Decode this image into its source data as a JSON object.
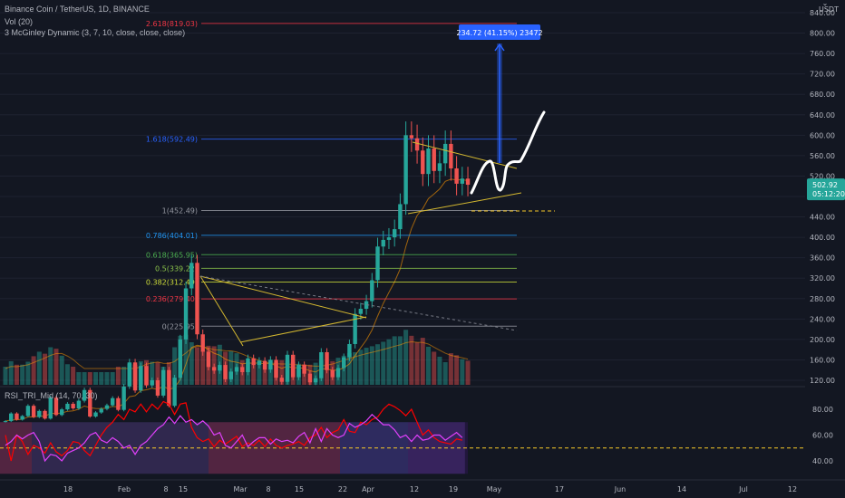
{
  "header": {
    "symbol_line": "Binance Coin / TetherUS, 1D, BINANCE",
    "indicator_1": "Vol (20)",
    "indicator_2": "3 McGinley Dynamic (3, 7, 10, close, close, close)",
    "rsi_label": "RSI_TRI_Mid (14, 70, 30)"
  },
  "price_axis": {
    "currency": "USDT",
    "ticks": [
      "840.00",
      "800.00",
      "760.00",
      "720.00",
      "680.00",
      "640.00",
      "600.00",
      "560.00",
      "520.00",
      "480.00",
      "440.00",
      "400.00",
      "360.00",
      "320.00",
      "280.00",
      "240.00",
      "200.00",
      "160.00",
      "120.00"
    ],
    "current_price": "502.92",
    "countdown": "05:12:20",
    "price_color": "#26a69a"
  },
  "rsi_axis": {
    "ticks": [
      "80.00",
      "60.00",
      "40.00"
    ]
  },
  "time_axis": {
    "labels": [
      "18",
      "Feb",
      "8",
      "15",
      "Mar",
      "8",
      "15",
      "22",
      "Apr",
      "12",
      "19",
      "May",
      "17",
      "Jun",
      "14",
      "Jul",
      "12"
    ]
  },
  "fib_levels": [
    {
      "label": "2.618(819.03)",
      "price": 819.03,
      "color": "#f23645"
    },
    {
      "label": "1.618(592.49)",
      "price": 592.49,
      "color": "#2962ff"
    },
    {
      "label": "1(452.49)",
      "price": 452.49,
      "color": "#9598a1"
    },
    {
      "label": "0.786(404.01)",
      "price": 404.01,
      "color": "#2196f3"
    },
    {
      "label": "0.618(365.95)",
      "price": 365.95,
      "color": "#4caf50"
    },
    {
      "label": "0.5(339.22)",
      "price": 339.22,
      "color": "#8bc34a"
    },
    {
      "label": "0.382(312.49)",
      "price": 312.49,
      "color": "#cddc39"
    },
    {
      "label": "0.236(279.40)",
      "price": 279.4,
      "color": "#f23645"
    },
    {
      "label": "0(225.95)",
      "price": 225.95,
      "color": "#9598a1"
    }
  ],
  "measure_tool": {
    "label": "234.72 (41.15%) 23472",
    "color": "#2962ff"
  },
  "colors": {
    "up": "#26a69a",
    "down": "#ef5350",
    "accent": "#2962ff",
    "rsi_line": "#ff0000",
    "rsi_mid": "#e040fb"
  },
  "chart_data": {
    "type": "candlestick",
    "y_range": [
      120,
      860
    ],
    "candles": [
      [
        40,
        0.0
      ],
      [
        55,
        0.11
      ],
      [
        43,
        0.04
      ],
      [
        50,
        0.15
      ],
      [
        70,
        0.21
      ],
      [
        48,
        0.32
      ],
      [
        60,
        0.41
      ],
      [
        45,
        0.37
      ],
      [
        86,
        0.5
      ],
      [
        52,
        0.47
      ],
      [
        63,
        0.33
      ],
      [
        74,
        0.05
      ],
      [
        65,
        -0.1
      ],
      [
        80,
        -0.19
      ],
      [
        101,
        -0.21
      ],
      [
        49,
        -0.25
      ],
      [
        57,
        -0.31
      ],
      [
        64,
        -0.34
      ],
      [
        71,
        -0.25
      ],
      [
        85,
        -0.2
      ],
      [
        62,
        -0.12
      ],
      [
        108,
        -0.08
      ],
      [
        155,
        0.06
      ],
      [
        100,
        0.15
      ],
      [
        148,
        0.22
      ],
      [
        110,
        0.24
      ],
      [
        120,
        0.1
      ],
      [
        90,
        0.2
      ],
      [
        140,
        -0.04
      ],
      [
        70,
        0.2
      ],
      [
        125,
        0.5
      ],
      [
        200,
        0.73
      ],
      [
        300,
        0.75
      ],
      [
        350,
        0.6
      ],
      [
        210,
        0.5
      ],
      [
        176,
        0.44
      ],
      [
        146,
        0.53
      ],
      [
        139,
        0.52
      ],
      [
        150,
        0.55
      ],
      [
        122,
        0.41
      ],
      [
        137,
        0.42
      ],
      [
        146,
        0.38
      ],
      [
        136,
        0.24
      ],
      [
        163,
        0.21
      ],
      [
        150,
        0.15
      ],
      [
        158,
        0.13
      ],
      [
        141,
        0.15
      ],
      [
        160,
        0.14
      ],
      [
        125,
        0.08
      ],
      [
        117,
        0.13
      ],
      [
        170,
        0.12
      ],
      [
        126,
        0.1
      ],
      [
        150,
        0.06
      ],
      [
        133,
        0.05
      ],
      [
        116,
        0.04
      ],
      [
        124,
        0.08
      ],
      [
        175,
        0.12
      ],
      [
        140,
        0.16
      ],
      [
        126,
        0.22
      ],
      [
        144,
        0.29
      ],
      [
        165,
        0.33
      ],
      [
        191,
        0.38
      ],
      [
        250,
        0.4
      ],
      [
        260,
        0.45
      ],
      [
        275,
        0.49
      ],
      [
        316,
        0.52
      ],
      [
        382,
        0.56
      ],
      [
        395,
        0.61
      ],
      [
        400,
        0.66
      ],
      [
        416,
        0.72
      ],
      [
        465,
        0.72
      ],
      [
        600,
        0.85
      ],
      [
        594,
        0.73
      ],
      [
        570,
        0.6
      ],
      [
        524,
        0.69
      ],
      [
        574,
        0.51
      ],
      [
        530,
        0.41
      ],
      [
        545,
        0.31
      ],
      [
        583,
        0.2
      ],
      [
        535,
        0.38
      ],
      [
        505,
        0.34
      ],
      [
        515,
        0.26
      ],
      [
        503,
        0.12
      ]
    ],
    "rsi": [
      [
        60,
        52
      ],
      [
        40,
        55
      ],
      [
        60,
        60
      ],
      [
        55,
        57
      ],
      [
        45,
        60
      ],
      [
        52,
        62
      ],
      [
        50,
        55
      ],
      [
        46,
        40
      ],
      [
        54,
        45
      ],
      [
        47,
        44
      ],
      [
        44,
        40
      ],
      [
        48,
        46
      ],
      [
        55,
        48
      ],
      [
        54,
        50
      ],
      [
        48,
        54
      ],
      [
        44,
        60
      ],
      [
        52,
        62
      ],
      [
        60,
        56
      ],
      [
        66,
        54
      ],
      [
        70,
        58
      ],
      [
        76,
        55
      ],
      [
        72,
        50
      ],
      [
        80,
        52
      ],
      [
        78,
        45
      ],
      [
        84,
        52
      ],
      [
        78,
        55
      ],
      [
        84,
        60
      ],
      [
        80,
        65
      ],
      [
        86,
        68
      ],
      [
        84,
        74
      ],
      [
        76,
        69
      ],
      [
        84,
        75
      ],
      [
        85,
        70
      ],
      [
        66,
        72
      ],
      [
        58,
        68
      ],
      [
        55,
        71
      ],
      [
        57,
        67
      ],
      [
        51,
        60
      ],
      [
        56,
        62
      ],
      [
        53,
        52
      ],
      [
        56,
        50
      ],
      [
        59,
        55
      ],
      [
        51,
        60
      ],
      [
        54,
        51
      ],
      [
        52,
        55
      ],
      [
        56,
        58
      ],
      [
        51,
        58
      ],
      [
        57,
        53
      ],
      [
        52,
        57
      ],
      [
        50,
        55
      ],
      [
        52,
        56
      ],
      [
        53,
        54
      ],
      [
        55,
        59
      ],
      [
        52,
        62
      ],
      [
        58,
        54
      ],
      [
        60,
        65
      ],
      [
        66,
        55
      ],
      [
        58,
        65
      ],
      [
        62,
        60
      ],
      [
        64,
        58
      ],
      [
        72,
        60
      ],
      [
        63,
        69
      ],
      [
        62,
        66
      ],
      [
        70,
        68
      ],
      [
        68,
        71
      ],
      [
        72,
        76
      ],
      [
        74,
        72
      ],
      [
        80,
        68
      ],
      [
        84,
        68
      ],
      [
        82,
        64
      ],
      [
        79,
        58
      ],
      [
        75,
        60
      ],
      [
        80,
        55
      ],
      [
        70,
        60
      ],
      [
        60,
        56
      ],
      [
        64,
        57
      ],
      [
        58,
        60
      ],
      [
        55,
        60
      ],
      [
        54,
        56
      ],
      [
        53,
        59
      ],
      [
        57,
        62
      ],
      [
        56,
        58
      ]
    ]
  }
}
